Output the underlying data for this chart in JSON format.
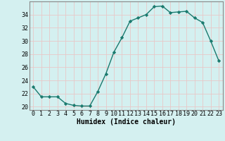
{
  "x": [
    0,
    1,
    2,
    3,
    4,
    5,
    6,
    7,
    8,
    9,
    10,
    11,
    12,
    13,
    14,
    15,
    16,
    17,
    18,
    19,
    20,
    21,
    22,
    23
  ],
  "y": [
    23.0,
    21.5,
    21.5,
    21.5,
    20.5,
    20.2,
    20.1,
    20.1,
    22.3,
    25.0,
    28.3,
    30.5,
    33.0,
    33.5,
    34.0,
    35.2,
    35.3,
    34.3,
    34.4,
    34.5,
    33.5,
    32.8,
    30.0,
    27.0
  ],
  "line_color": "#1a7a6e",
  "marker": "D",
  "marker_size": 2.2,
  "xlabel": "Humidex (Indice chaleur)",
  "xlim": [
    -0.5,
    23.5
  ],
  "ylim": [
    19.5,
    36.0
  ],
  "yticks": [
    20,
    22,
    24,
    26,
    28,
    30,
    32,
    34
  ],
  "xticks": [
    0,
    1,
    2,
    3,
    4,
    5,
    6,
    7,
    8,
    9,
    10,
    11,
    12,
    13,
    14,
    15,
    16,
    17,
    18,
    19,
    20,
    21,
    22,
    23
  ],
  "bg_color": "#d4f0f0",
  "grid_color": "#e8c8c8",
  "line_width": 1.0,
  "xlabel_fontsize": 7,
  "tick_fontsize": 6,
  "spine_color": "#888888"
}
